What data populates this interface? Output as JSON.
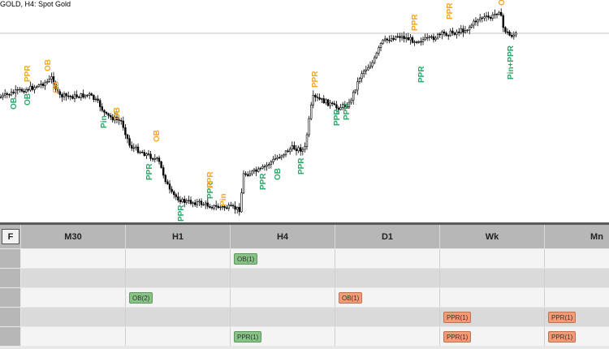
{
  "chart_title": "GOLD, H4:  Spot Gold",
  "colors": {
    "bull_label": "#f5a623",
    "bear_label": "#2ea76a",
    "green_badge": "#86c486",
    "orange_badge": "#f79a74"
  },
  "chart_data": {
    "type": "candlestick",
    "price_labels": [
      {
        "text": "OB",
        "color": "bear"
      },
      {
        "text": "OB",
        "color": "bear"
      },
      {
        "text": "PPR",
        "color": "bull"
      },
      {
        "text": "OB",
        "color": "bull"
      },
      {
        "text": "OB",
        "color": "bull"
      },
      {
        "text": "Pin",
        "color": "bear"
      },
      {
        "text": "OB",
        "color": "bull"
      },
      {
        "text": "PPR",
        "color": "bear"
      },
      {
        "text": "OB",
        "color": "bull"
      },
      {
        "text": "PPR",
        "color": "bear"
      },
      {
        "text": "PPR",
        "color": "bull"
      },
      {
        "text": "Pin",
        "color": "bull"
      },
      {
        "text": "PPR",
        "color": "bear"
      },
      {
        "text": "PPR",
        "color": "bear"
      },
      {
        "text": "OB",
        "color": "bear"
      },
      {
        "text": "PPR",
        "color": "bear"
      },
      {
        "text": "PPR",
        "color": "bull"
      },
      {
        "text": "PPR",
        "color": "bear"
      },
      {
        "text": "PPR",
        "color": "bear"
      },
      {
        "text": "PPR",
        "color": "bull"
      },
      {
        "text": "PPR",
        "color": "bear"
      },
      {
        "text": "PPR",
        "color": "bull"
      },
      {
        "text": "O",
        "color": "bull"
      },
      {
        "text": "Pin+PPR",
        "color": "bear"
      }
    ]
  },
  "panel": {
    "f_button": "F",
    "columns": [
      "M30",
      "H1",
      "H4",
      "D1",
      "Wk",
      "Mn"
    ],
    "rows": [
      [
        "",
        "",
        "OB(1)",
        "",
        "",
        ""
      ],
      [
        "",
        "",
        "",
        "",
        "",
        ""
      ],
      [
        "",
        "OB(2)",
        "",
        "OB(1)",
        "",
        ""
      ],
      [
        "",
        "",
        "",
        "",
        "PPR(1)",
        "PPR(1)"
      ],
      [
        "",
        "",
        "PPR(1)",
        "",
        "PPR(1)",
        "PPR(1)"
      ]
    ],
    "badge_colors": [
      [
        "",
        "",
        "green",
        "",
        "",
        ""
      ],
      [
        "",
        "",
        "",
        "",
        "",
        ""
      ],
      [
        "",
        "green",
        "",
        "orange",
        "",
        ""
      ],
      [
        "",
        "",
        "",
        "",
        "orange",
        "orange"
      ],
      [
        "",
        "",
        "green",
        "",
        "orange",
        "orange"
      ]
    ]
  }
}
